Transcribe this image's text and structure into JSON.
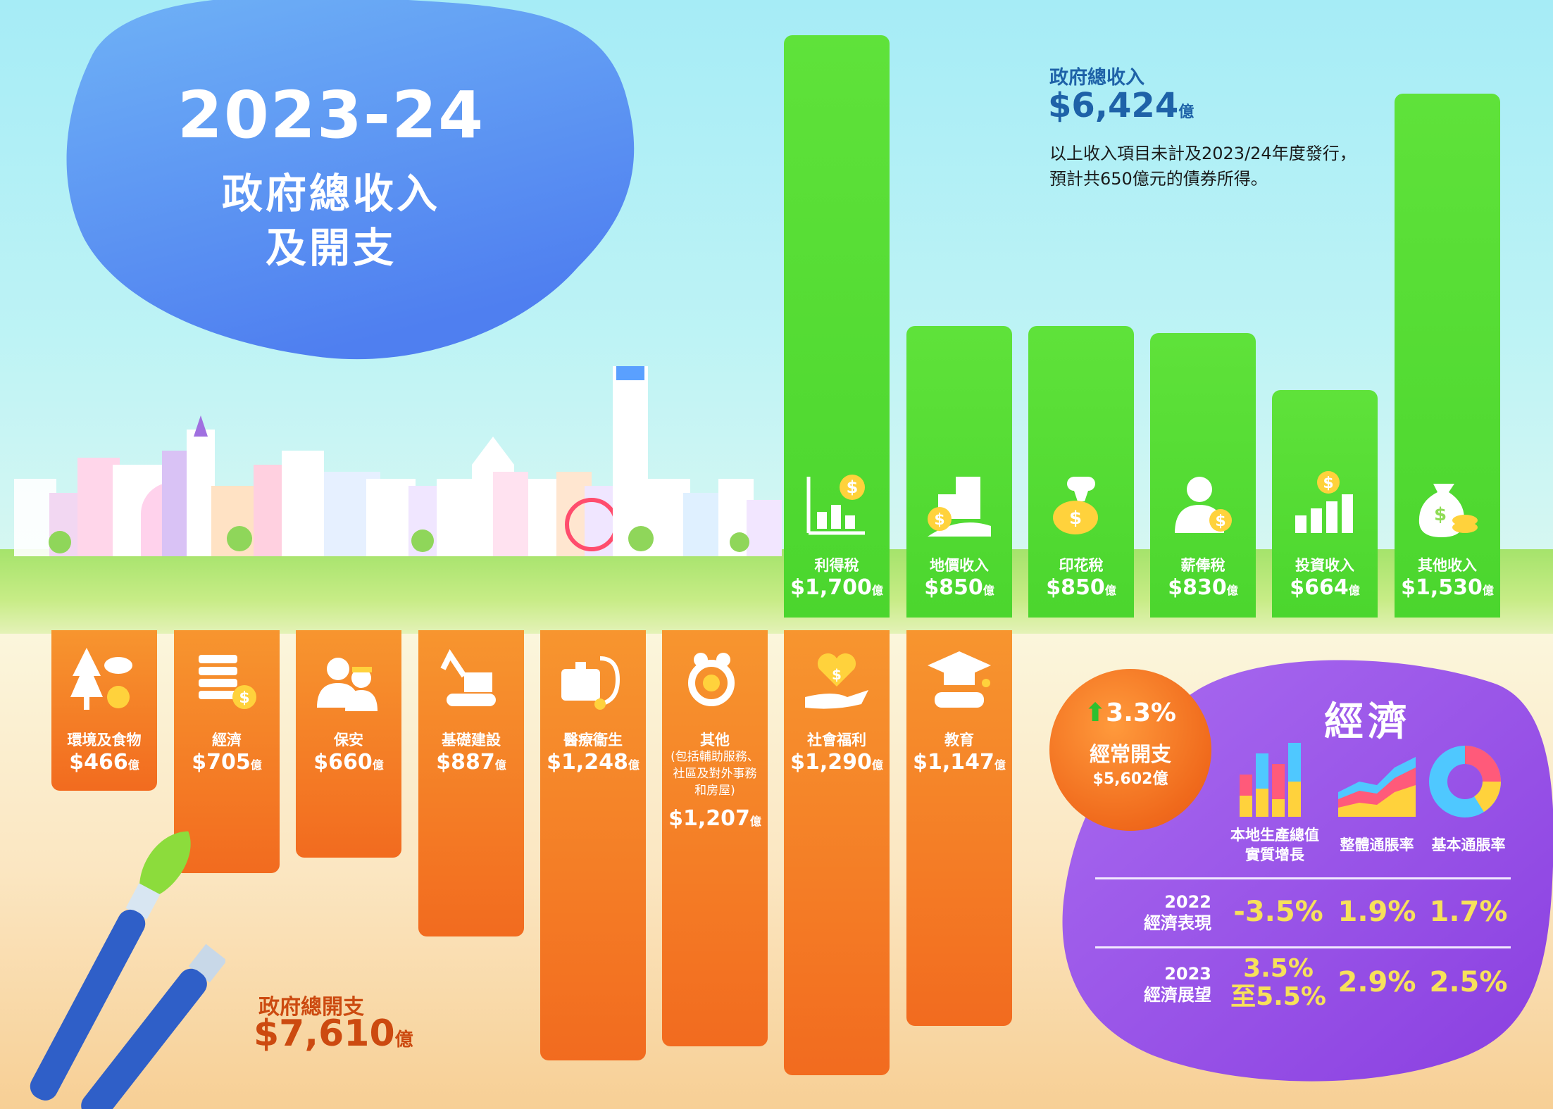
{
  "header": {
    "year": "2023-24",
    "title_line1": "政府總收入",
    "title_line2": "及開支"
  },
  "revenue": {
    "title": "政府總收入",
    "total": "$6,424",
    "unit": "億",
    "note_line1": "以上收入項目未計及2023/24年度發行，",
    "note_line2": "預計共650億元的債券所得。"
  },
  "expenditure": {
    "title": "政府總開支",
    "total": "$7,610",
    "unit": "億"
  },
  "recurrent": {
    "growth": "3.3%",
    "label": "經常開支",
    "value": "$5,602億"
  },
  "economy": {
    "title": "經濟",
    "indicators": [
      {
        "line1": "本地生產總值",
        "line2": "實質增長"
      },
      {
        "line1": "整體通脹率",
        "line2": ""
      },
      {
        "line1": "基本通脹率",
        "line2": ""
      }
    ],
    "rows": [
      {
        "year": "2022",
        "label": "經濟表現",
        "values": [
          "-3.5%",
          "1.9%",
          "1.7%"
        ]
      },
      {
        "year": "2023",
        "label": "經濟展望",
        "gdp_line1": "3.5%",
        "gdp_line2": "至5.5%",
        "values": [
          "2.9%",
          "2.5%"
        ]
      }
    ]
  },
  "chart_data": [
    {
      "type": "bar",
      "title": "政府總收入",
      "unit": "億",
      "categories": [
        "利得稅",
        "地價收入",
        "印花稅",
        "薪俸稅",
        "投資收入",
        "其他收入"
      ],
      "values": [
        1700,
        850,
        850,
        830,
        664,
        1530
      ],
      "value_labels": [
        "$1,700",
        "$850",
        "$850",
        "$830",
        "$664",
        "$1,530"
      ],
      "icons": [
        "profits-chart-icon",
        "land-building-icon",
        "stamp-icon",
        "salaried-person-icon",
        "investment-bars-icon",
        "money-bag-icon"
      ],
      "color": "#5fe23a"
    },
    {
      "type": "bar",
      "title": "政府總開支",
      "unit": "億",
      "categories": [
        "環境及食物",
        "經濟",
        "保安",
        "基礎建設",
        "醫療衞生",
        "其他",
        "社會福利",
        "教育"
      ],
      "values": [
        466,
        705,
        660,
        887,
        1248,
        1207,
        1290,
        1147
      ],
      "value_labels": [
        "$466",
        "$705",
        "$660",
        "$887",
        "$1,248",
        "$1,207",
        "$1,290",
        "$1,147"
      ],
      "notes": [
        "",
        "",
        "",
        "",
        "",
        "(包括輔助服務、社區及對外事務和房屋)",
        "",
        ""
      ],
      "icons": [
        "tree-fish-apple-icon",
        "coin-stack-icon",
        "police-firefighter-icon",
        "excavator-icon",
        "medical-kit-icon",
        "other-services-icon",
        "heart-hand-icon",
        "graduation-cap-icon"
      ],
      "color": "#f26b1f"
    }
  ],
  "colors": {
    "revenue_green": "#5fe23a",
    "expenditure_orange": "#f26b1f",
    "economy_purple": "#9a55e6",
    "title_blob_blue": "#5a8cf0",
    "highlight_yellow": "#f7e15a"
  }
}
